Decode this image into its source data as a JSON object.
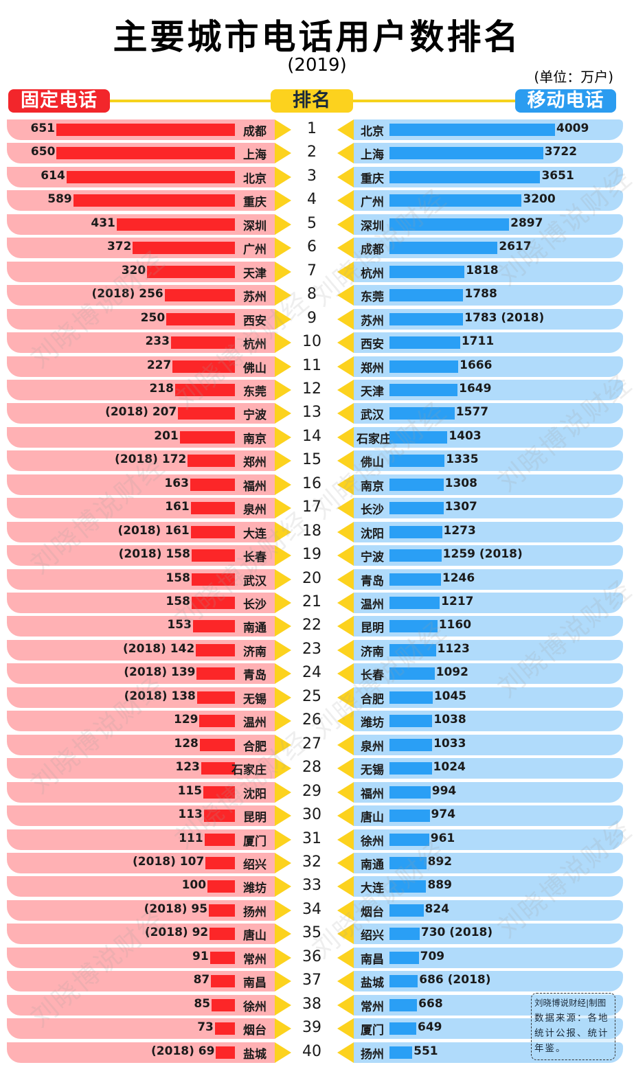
{
  "header": {
    "title": "主要城市电话用户数排名",
    "subtitle": "(2019)",
    "unit": "(单位：万户)",
    "fixed_label": "固定电话",
    "rank_label": "排名",
    "mobile_label": "移动电话"
  },
  "credit": {
    "author": "刘晓博说财经|制图",
    "source": "数据来源：各地统计公报、统计年鉴。"
  },
  "watermark": "刘晓博说财经",
  "colors": {
    "fixed_bar": "#fc2628",
    "fixed_row": "#ffb1b4",
    "mobile_bar": "#2a9ff5",
    "mobile_row": "#b0dbfb",
    "rank_accent": "#fcd21e"
  },
  "chart_data": {
    "type": "bar",
    "title": "主要城市电话用户数排名 (2019)",
    "unit": "万户",
    "ranks": [
      1,
      2,
      3,
      4,
      5,
      6,
      7,
      8,
      9,
      10,
      11,
      12,
      13,
      14,
      15,
      16,
      17,
      18,
      19,
      20,
      21,
      22,
      23,
      24,
      25,
      26,
      27,
      28,
      29,
      30,
      31,
      32,
      33,
      34,
      35,
      36,
      37,
      38,
      39,
      40
    ],
    "series": [
      {
        "name": "固定电话",
        "cities": [
          "成都",
          "上海",
          "北京",
          "重庆",
          "深圳",
          "广州",
          "天津",
          "苏州",
          "西安",
          "杭州",
          "佛山",
          "东莞",
          "宁波",
          "南京",
          "郑州",
          "福州",
          "泉州",
          "大连",
          "长春",
          "武汉",
          "长沙",
          "南通",
          "济南",
          "青岛",
          "无锡",
          "温州",
          "合肥",
          "石家庄",
          "沈阳",
          "昆明",
          "厦门",
          "绍兴",
          "潍坊",
          "扬州",
          "唐山",
          "常州",
          "南昌",
          "徐州",
          "烟台",
          "盐城"
        ],
        "values": [
          651,
          650,
          614,
          589,
          431,
          372,
          320,
          256,
          250,
          233,
          227,
          218,
          207,
          201,
          172,
          163,
          161,
          161,
          158,
          158,
          158,
          153,
          142,
          139,
          138,
          129,
          128,
          123,
          115,
          113,
          111,
          107,
          100,
          95,
          92,
          91,
          87,
          85,
          73,
          69
        ],
        "labels": [
          "651",
          "650",
          "614",
          "589",
          "431",
          "372",
          "320",
          "(2018) 256",
          "250",
          "233",
          "227",
          "218",
          "(2018) 207",
          "201",
          "(2018) 172",
          "163",
          "161",
          "(2018) 161",
          "(2018) 158",
          "158",
          "158",
          "153",
          "(2018) 142",
          "(2018) 139",
          "(2018) 138",
          "129",
          "128",
          "123",
          "115",
          "113",
          "111",
          "(2018) 107",
          "100",
          "(2018) 95",
          "(2018) 92",
          "91",
          "87",
          "85",
          "73",
          "(2018) 69"
        ]
      },
      {
        "name": "移动电话",
        "cities": [
          "北京",
          "上海",
          "重庆",
          "广州",
          "深圳",
          "成都",
          "杭州",
          "东莞",
          "苏州",
          "西安",
          "郑州",
          "天津",
          "武汉",
          "石家庄",
          "佛山",
          "南京",
          "长沙",
          "沈阳",
          "宁波",
          "青岛",
          "温州",
          "昆明",
          "济南",
          "长春",
          "合肥",
          "潍坊",
          "泉州",
          "无锡",
          "福州",
          "唐山",
          "徐州",
          "南通",
          "大连",
          "烟台",
          "绍兴",
          "南昌",
          "盐城",
          "常州",
          "厦门",
          "扬州"
        ],
        "values": [
          4009,
          3722,
          3651,
          3200,
          2897,
          2617,
          1818,
          1788,
          1783,
          1711,
          1666,
          1649,
          1577,
          1403,
          1335,
          1308,
          1307,
          1273,
          1259,
          1246,
          1217,
          1160,
          1123,
          1092,
          1045,
          1038,
          1033,
          1024,
          994,
          974,
          961,
          892,
          889,
          824,
          730,
          709,
          686,
          668,
          649,
          551
        ],
        "labels": [
          "4009",
          "3722",
          "3651",
          "3200",
          "2897",
          "2617",
          "1818",
          "1788",
          "1783 (2018)",
          "1711",
          "1666",
          "1649",
          "1577",
          "1403",
          "1335",
          "1308",
          "1307",
          "1273",
          "1259 (2018)",
          "1246",
          "1217",
          "1160",
          "1123",
          "1092",
          "1045",
          "1038",
          "1033",
          "1024",
          "994",
          "974",
          "961",
          "892",
          "889",
          "824",
          "730 (2018)",
          "709",
          "686 (2018)",
          "668",
          "649",
          "551"
        ]
      }
    ]
  }
}
